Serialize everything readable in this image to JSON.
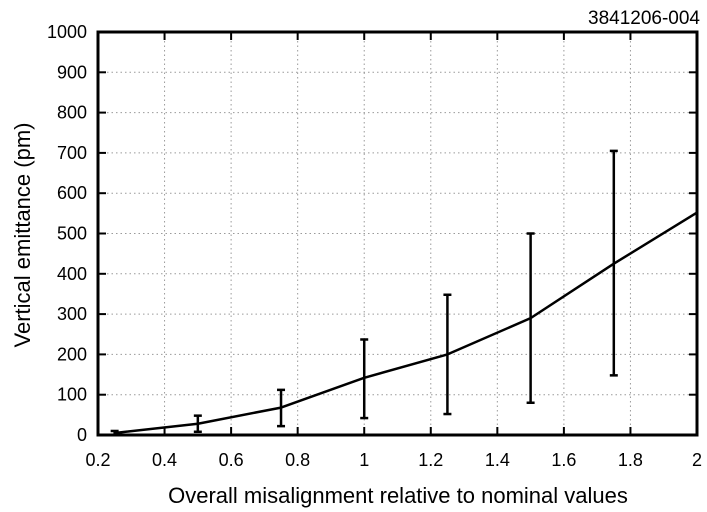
{
  "figure_id": "3841206-004",
  "chart_data": {
    "type": "line",
    "xlabel": "Overall misalignment relative to nominal values",
    "ylabel": "Vertical emittance (pm)",
    "xlim": [
      0.2,
      2.0
    ],
    "ylim": [
      0,
      1000
    ],
    "grid": true,
    "x_ticks": [
      0.2,
      0.4,
      0.6,
      0.8,
      1.0,
      1.2,
      1.4,
      1.6,
      1.8,
      2.0
    ],
    "x_tick_labels": [
      "0.2",
      "0.4",
      "0.6",
      "0.8",
      "1",
      "1.2",
      "1.4",
      "1.6",
      "1.8",
      "2"
    ],
    "y_ticks": [
      0,
      100,
      200,
      300,
      400,
      500,
      600,
      700,
      800,
      900,
      1000
    ],
    "y_tick_labels": [
      "0",
      "100",
      "200",
      "300",
      "400",
      "500",
      "600",
      "700",
      "800",
      "900",
      "1000"
    ],
    "series": [
      {
        "x": [
          0.25,
          0.5,
          0.75,
          1.0,
          1.25,
          1.5,
          1.75,
          2.0
        ],
        "y": [
          5,
          28,
          68,
          142,
          200,
          290,
          425,
          552
        ]
      }
    ],
    "error_bars": [
      {
        "x": 0.25,
        "low": 0,
        "high": 10
      },
      {
        "x": 0.5,
        "low": 8,
        "high": 48
      },
      {
        "x": 0.75,
        "low": 22,
        "high": 112
      },
      {
        "x": 1.0,
        "low": 42,
        "high": 237
      },
      {
        "x": 1.25,
        "low": 52,
        "high": 348
      },
      {
        "x": 1.5,
        "low": 80,
        "high": 500
      },
      {
        "x": 1.75,
        "low": 148,
        "high": 705
      }
    ]
  }
}
